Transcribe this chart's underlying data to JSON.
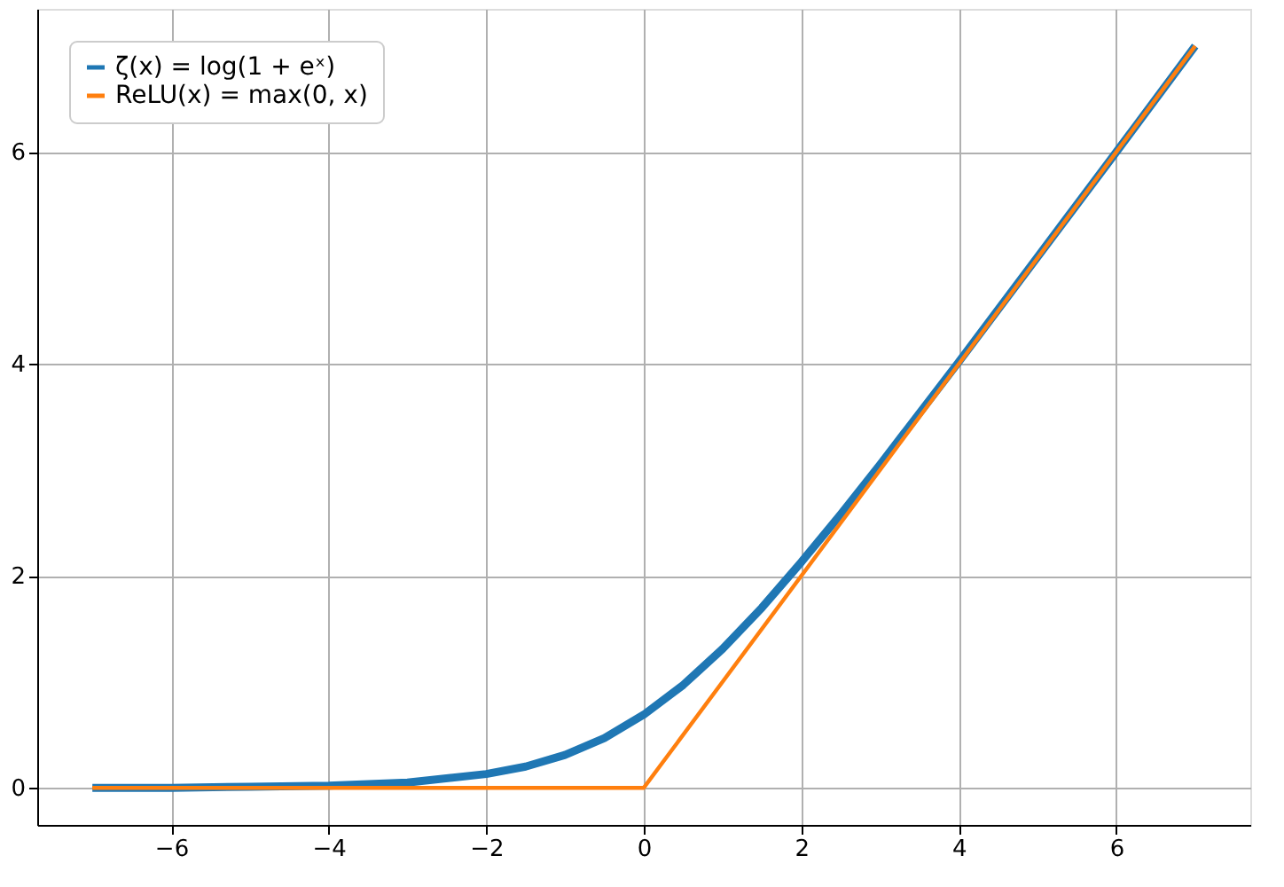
{
  "chart_data": {
    "type": "line",
    "series": [
      {
        "name": "ζ(x) = log(1 + eˣ)",
        "color": "#1f77b4",
        "x": [
          -7,
          -6,
          -5,
          -4,
          -3,
          -2,
          -1.5,
          -1,
          -0.5,
          0,
          0.5,
          1,
          1.5,
          2,
          2.5,
          3,
          4,
          5,
          6,
          7
        ],
        "values": [
          0.0,
          0.0,
          0.01,
          0.02,
          0.05,
          0.13,
          0.2,
          0.31,
          0.47,
          0.69,
          0.97,
          1.31,
          1.7,
          2.13,
          2.58,
          3.05,
          4.02,
          5.01,
          6.0,
          7.0
        ]
      },
      {
        "name": "ReLU(x) = max(0, x)",
        "color": "#ff7f0e",
        "x": [
          -7,
          0,
          7
        ],
        "values": [
          0,
          0,
          7
        ]
      }
    ],
    "xlim": [
      -7.7,
      7.7
    ],
    "xticks": [
      -6,
      -4,
      -2,
      0,
      2,
      4,
      6
    ],
    "ylim": [
      -0.35,
      7.35
    ],
    "yticks": [
      0,
      2,
      4,
      6
    ],
    "grid": true,
    "legend": "top left",
    "marker": "none",
    "line_style": "solid"
  }
}
